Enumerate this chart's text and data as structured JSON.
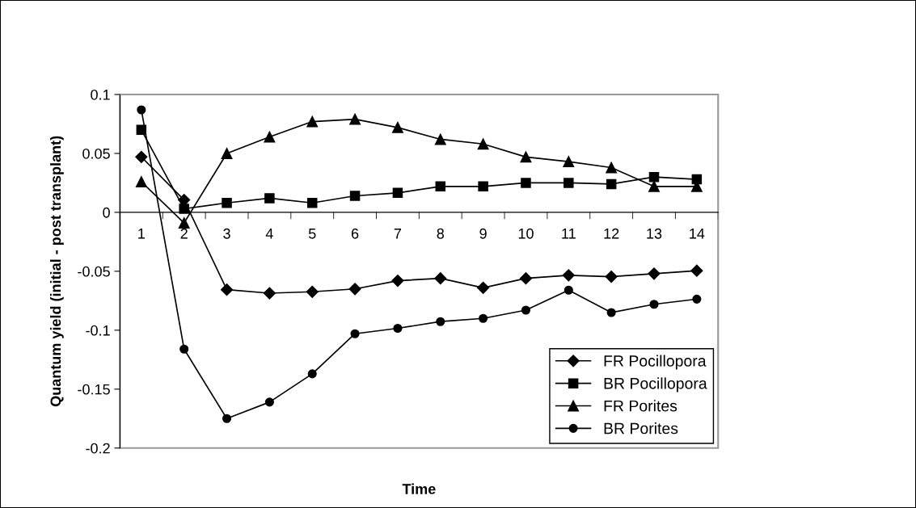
{
  "chart_data": {
    "type": "line",
    "xlabel": "Time",
    "ylabel": "Quantum yield (initial - post transplant)",
    "categories": [
      "1",
      "2",
      "3",
      "4",
      "5",
      "6",
      "7",
      "8",
      "9",
      "10",
      "11",
      "12",
      "13",
      "14"
    ],
    "series": [
      {
        "name": "FR Pocillopora",
        "color": "#000000",
        "marker": "diamond",
        "values": [
          0.047,
          0.0105,
          -0.0656,
          -0.0686,
          -0.0674,
          -0.065,
          -0.058,
          -0.056,
          -0.064,
          -0.056,
          -0.0534,
          -0.0546,
          -0.052,
          -0.0495
        ]
      },
      {
        "name": "BR Pocillopora",
        "color": "#000000",
        "marker": "square",
        "values": [
          0.07,
          0.003,
          0.008,
          0.012,
          0.008,
          0.014,
          0.0165,
          0.022,
          0.022,
          0.025,
          0.025,
          0.024,
          0.03,
          0.028
        ]
      },
      {
        "name": "FR Porites",
        "color": "#000000",
        "marker": "triangle",
        "values": [
          0.026,
          -0.009,
          0.05,
          0.064,
          0.077,
          0.079,
          0.072,
          0.062,
          0.058,
          0.047,
          0.043,
          0.038,
          0.022,
          0.022
        ]
      },
      {
        "name": "BR Porites",
        "color": "#000000",
        "marker": "circle",
        "values": [
          0.087,
          -0.116,
          -0.175,
          -0.161,
          -0.137,
          -0.103,
          -0.0984,
          -0.0927,
          -0.09,
          -0.083,
          -0.066,
          -0.085,
          -0.078,
          -0.0736
        ]
      }
    ],
    "ylim": [
      -0.2,
      0.1
    ],
    "yticks": [
      -0.2,
      -0.15,
      -0.1,
      -0.05,
      0,
      0.05,
      0.1
    ],
    "grid": false,
    "legend": "bottom right",
    "line_style": "solid"
  }
}
